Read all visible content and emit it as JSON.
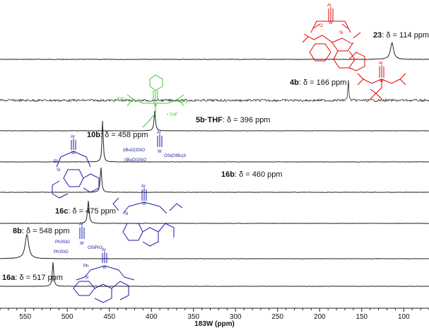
{
  "chart_data": {
    "type": "line",
    "xlabel": "183W (ppm)",
    "xlim": [
      580,
      70
    ],
    "x_reversed": true,
    "x_ticks": [
      "550",
      "500",
      "450",
      "400",
      "350",
      "300",
      "250",
      "200",
      "150",
      "100"
    ],
    "grid": false,
    "series": [
      {
        "name": "23",
        "label_bold": "23",
        "label_rest": ": δ = 114 ppm",
        "peak_ppm": 114,
        "color": "#e60000"
      },
      {
        "name": "4b",
        "label_bold": "4b",
        "label_rest": ": δ = 166 ppm",
        "peak_ppm": 166,
        "color": "#e60000"
      },
      {
        "name": "5b·THF",
        "label_bold": "5b·THF",
        "label_rest": ": δ = 396 ppm",
        "peak_ppm": 396,
        "color": "#33cc33"
      },
      {
        "name": "10b",
        "label_bold": "10b",
        "label_rest": ": δ = 458 ppm",
        "peak_ppm": 458,
        "color": "#1a1aa6"
      },
      {
        "name": "16b",
        "label_bold": "16b",
        "label_rest": ": δ = 460 ppm",
        "peak_ppm": 460,
        "color": "#1a1aa6"
      },
      {
        "name": "16c",
        "label_bold": "16c",
        "label_rest": ": δ = 475 ppm",
        "peak_ppm": 475,
        "color": "#1a1aa6"
      },
      {
        "name": "8b",
        "label_bold": "8b",
        "label_rest": ": δ = 548 ppm",
        "peak_ppm": 548,
        "color": "#1a1aa6"
      },
      {
        "name": "16a",
        "label_bold": "16a",
        "label_rest": ": δ = 517 ppm",
        "peak_ppm": 517,
        "color": "#1a1aa6"
      }
    ]
  },
  "structures": {
    "s23": [
      "Ar",
      "W",
      "O",
      "Si"
    ],
    "s4b": [
      "Ar",
      "W",
      "O",
      "O",
      "O"
    ],
    "s5b": [
      "F3C",
      "CF3",
      "W",
      "O",
      "• THF"
    ],
    "s10b": [
      "Ar",
      "(tBuO)3SiO",
      "W",
      "OSi(OtBu)3",
      "(tBuO)3SiO"
    ],
    "s16b": [
      "Ar",
      "Et",
      "Si",
      "W",
      "O"
    ],
    "s16c": [
      "Ar",
      "Si",
      "W",
      "O"
    ],
    "s8b": [
      "Ar",
      "Ph3SiO",
      "W",
      "OSiPh3",
      "Ph3SiO"
    ],
    "s16a": [
      "Ar",
      "Ph",
      "Si",
      "W",
      "O"
    ]
  }
}
